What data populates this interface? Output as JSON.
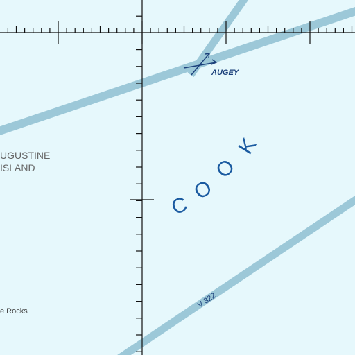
{
  "map": {
    "colors": {
      "water": "#e6f8fc",
      "airway": "#9cc8d8",
      "graticule": "#111111",
      "label_blue": "#1a5aa0",
      "label_gray": "#666666",
      "fix": "#1a3f7a"
    },
    "fix": {
      "name": "AUGEY",
      "icon": "intersection-arrow-icon"
    },
    "water_label": {
      "letters": [
        "C",
        "O",
        "O",
        "K"
      ]
    },
    "island_label": {
      "line1": "UGUSTINE",
      "line2": "ISLAND"
    },
    "rocks_label": "e Rocks",
    "airway_label": "V 322"
  }
}
